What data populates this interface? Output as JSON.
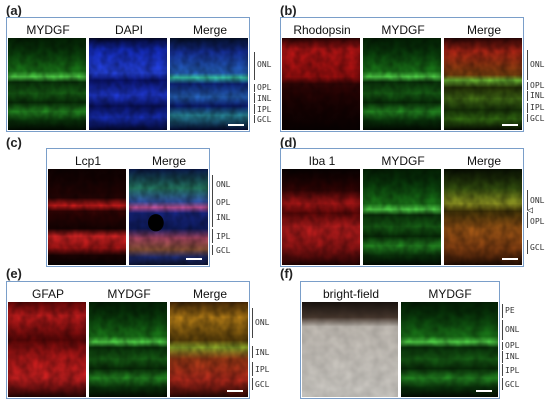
{
  "panels": {
    "a": {
      "letter": "(a)",
      "titles": [
        "MYDGF",
        "DAPI",
        "Merge"
      ],
      "layers": [
        "ONL",
        "OPL",
        "INL",
        "IPL",
        "GCL"
      ]
    },
    "b": {
      "letter": "(b)",
      "titles": [
        "Rhodopsin",
        "MYDGF",
        "Merge"
      ],
      "layers": [
        "ONL",
        "OPL",
        "INL",
        "IPL",
        "GCL"
      ]
    },
    "c": {
      "letter": "(c)",
      "titles": [
        "Lcp1",
        "Merge"
      ],
      "layers": [
        "ONL",
        "OPL",
        "INL",
        "IPL",
        "GCL"
      ]
    },
    "d": {
      "letter": "(d)",
      "titles": [
        "Iba 1",
        "MYDGF",
        "Merge"
      ],
      "layers": [
        "ONL",
        "OPL",
        "GCL"
      ]
    },
    "e": {
      "letter": "(e)",
      "titles": [
        "GFAP",
        "MYDGF",
        "Merge"
      ],
      "layers": [
        "ONL",
        "INL",
        "IPL",
        "GCL"
      ]
    },
    "f": {
      "letter": "(f)",
      "titles": [
        "bright-field",
        "MYDGF"
      ],
      "layers": [
        "PE",
        "ONL",
        "OPL",
        "INL",
        "IPL",
        "GCL"
      ]
    }
  },
  "colors": {
    "frame": "#7a9ec9",
    "green": "#3fd23a",
    "red": "#e82020",
    "blue": "#2a4cff",
    "brightfield": "#c8c4be"
  }
}
